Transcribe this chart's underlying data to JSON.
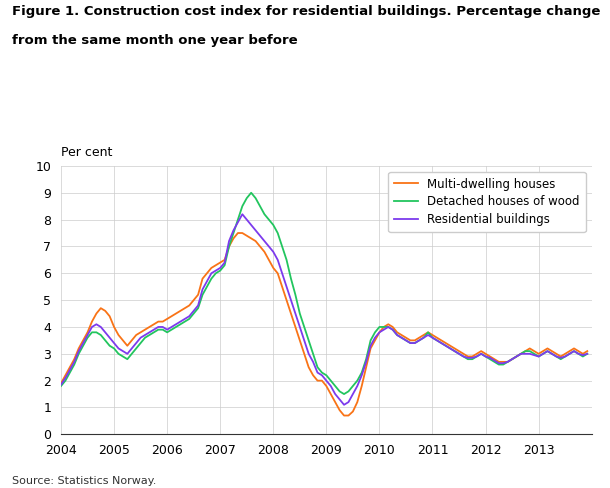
{
  "title_line1": "Figure 1. Construction cost index for residential buildings. Percentage change",
  "title_line2": "from the same month one year before",
  "ylabel": "Per cent",
  "source": "Source: Statistics Norway.",
  "ylim": [
    0,
    10
  ],
  "yticks": [
    0,
    1,
    2,
    3,
    4,
    5,
    6,
    7,
    8,
    9,
    10
  ],
  "colors": {
    "multi": "#F97316",
    "detached": "#22C55E",
    "residential": "#7C3AED"
  },
  "legend_labels": [
    "Multi-dwelling houses",
    "Detached houses of wood",
    "Residential buildings"
  ],
  "background_color": "#FFFFFF",
  "grid_color": "#CCCCCC",
  "multi_dwelling": [
    1.9,
    2.2,
    2.5,
    2.8,
    3.2,
    3.5,
    3.8,
    4.2,
    4.5,
    4.7,
    4.6,
    4.4,
    4.0,
    3.7,
    3.5,
    3.3,
    3.5,
    3.7,
    3.8,
    3.9,
    4.0,
    4.1,
    4.2,
    4.2,
    4.3,
    4.4,
    4.5,
    4.6,
    4.7,
    4.8,
    5.0,
    5.2,
    5.8,
    6.0,
    6.2,
    6.3,
    6.4,
    6.5,
    7.0,
    7.3,
    7.5,
    7.5,
    7.4,
    7.3,
    7.2,
    7.0,
    6.8,
    6.5,
    6.2,
    6.0,
    5.5,
    5.0,
    4.5,
    4.0,
    3.5,
    3.0,
    2.5,
    2.2,
    2.0,
    2.0,
    1.8,
    1.5,
    1.2,
    0.9,
    0.7,
    0.7,
    0.85,
    1.2,
    1.8,
    2.5,
    3.2,
    3.5,
    3.8,
    4.0,
    4.1,
    4.0,
    3.8,
    3.7,
    3.6,
    3.5,
    3.5,
    3.6,
    3.7,
    3.8,
    3.7,
    3.6,
    3.5,
    3.4,
    3.3,
    3.2,
    3.1,
    3.0,
    2.9,
    2.9,
    3.0,
    3.1,
    3.0,
    2.9,
    2.8,
    2.7,
    2.7,
    2.7,
    2.8,
    2.9,
    3.0,
    3.1,
    3.2,
    3.1,
    3.0,
    3.1,
    3.2,
    3.1,
    3.0,
    2.9,
    3.0,
    3.1,
    3.2,
    3.1,
    3.0,
    3.1
  ],
  "detached_wood": [
    1.8,
    2.0,
    2.3,
    2.6,
    3.0,
    3.3,
    3.6,
    3.8,
    3.8,
    3.7,
    3.5,
    3.3,
    3.2,
    3.0,
    2.9,
    2.8,
    3.0,
    3.2,
    3.4,
    3.6,
    3.7,
    3.8,
    3.9,
    3.9,
    3.8,
    3.9,
    4.0,
    4.1,
    4.2,
    4.3,
    4.5,
    4.7,
    5.2,
    5.5,
    5.8,
    6.0,
    6.1,
    6.3,
    7.0,
    7.5,
    8.0,
    8.5,
    8.8,
    9.0,
    8.8,
    8.5,
    8.2,
    8.0,
    7.8,
    7.5,
    7.0,
    6.5,
    5.8,
    5.2,
    4.5,
    4.0,
    3.5,
    3.0,
    2.5,
    2.3,
    2.2,
    2.0,
    1.8,
    1.6,
    1.5,
    1.6,
    1.8,
    2.0,
    2.3,
    2.8,
    3.5,
    3.8,
    4.0,
    4.0,
    4.0,
    3.9,
    3.7,
    3.6,
    3.5,
    3.4,
    3.4,
    3.5,
    3.6,
    3.8,
    3.6,
    3.5,
    3.4,
    3.3,
    3.2,
    3.1,
    3.0,
    2.9,
    2.8,
    2.8,
    2.9,
    3.0,
    2.9,
    2.8,
    2.7,
    2.6,
    2.6,
    2.7,
    2.8,
    2.9,
    3.0,
    3.1,
    3.1,
    3.0,
    2.9,
    3.0,
    3.1,
    3.0,
    2.9,
    2.8,
    2.9,
    3.0,
    3.1,
    3.0,
    2.9,
    3.0
  ],
  "residential": [
    1.85,
    2.1,
    2.4,
    2.7,
    3.1,
    3.4,
    3.7,
    4.0,
    4.1,
    4.0,
    3.8,
    3.6,
    3.4,
    3.2,
    3.1,
    3.0,
    3.2,
    3.4,
    3.6,
    3.7,
    3.8,
    3.9,
    4.0,
    4.0,
    3.9,
    4.0,
    4.1,
    4.2,
    4.3,
    4.4,
    4.6,
    4.8,
    5.4,
    5.7,
    6.0,
    6.1,
    6.2,
    6.4,
    7.2,
    7.6,
    7.9,
    8.2,
    8.0,
    7.8,
    7.6,
    7.4,
    7.2,
    7.0,
    6.8,
    6.5,
    6.0,
    5.5,
    5.0,
    4.5,
    4.0,
    3.5,
    3.0,
    2.7,
    2.3,
    2.2,
    2.0,
    1.8,
    1.5,
    1.3,
    1.1,
    1.2,
    1.5,
    1.8,
    2.2,
    2.7,
    3.3,
    3.6,
    3.8,
    3.9,
    4.0,
    3.9,
    3.7,
    3.6,
    3.5,
    3.4,
    3.4,
    3.5,
    3.6,
    3.7,
    3.6,
    3.5,
    3.4,
    3.3,
    3.2,
    3.1,
    3.0,
    2.9,
    2.85,
    2.85,
    2.9,
    3.0,
    2.9,
    2.85,
    2.75,
    2.65,
    2.65,
    2.7,
    2.8,
    2.9,
    3.0,
    3.0,
    3.0,
    2.95,
    2.9,
    3.0,
    3.1,
    3.0,
    2.9,
    2.85,
    2.9,
    3.0,
    3.1,
    3.0,
    2.95,
    3.0
  ]
}
